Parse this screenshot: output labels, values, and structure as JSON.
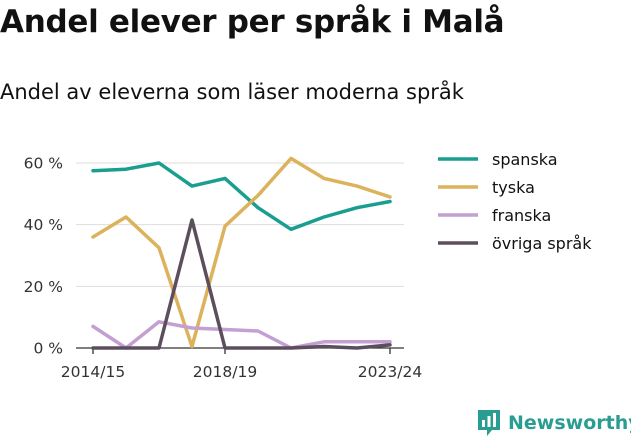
{
  "title": "Andel elever per språk i Malå",
  "subtitle": "Andel av eleverna som läser moderna språk",
  "brand": {
    "name": "Newsworthy",
    "logo_icon": "bar-chart-badge-icon",
    "color": "#2a9d92"
  },
  "chart_data": {
    "type": "line",
    "x": [
      "2014/15",
      "2015/16",
      "2016/17",
      "2017/18",
      "2018/19",
      "2019/20",
      "2020/21",
      "2021/22",
      "2022/23",
      "2023/24"
    ],
    "x_tick_labels": [
      "2014/15",
      "2018/19",
      "2023/24"
    ],
    "y_tick_labels": [
      "0 %",
      "20 %",
      "40 %",
      "60 %"
    ],
    "y_ticks": [
      0,
      20,
      40,
      60
    ],
    "ylim": [
      0,
      65
    ],
    "grid": true,
    "legend_position": "right",
    "series": [
      {
        "name": "spanska",
        "color": "#1a9e8f",
        "values": [
          57.5,
          58,
          60,
          52.5,
          55,
          45.5,
          38.5,
          42.5,
          45.5,
          47.5
        ]
      },
      {
        "name": "tyska",
        "color": "#dcb25a",
        "values": [
          36,
          42.5,
          32.5,
          0.5,
          39.5,
          49.5,
          61.5,
          55,
          52.5,
          49
        ]
      },
      {
        "name": "franska",
        "color": "#c49fd1",
        "values": [
          7,
          0,
          8.5,
          6.5,
          6,
          5.5,
          0,
          2,
          2,
          2
        ]
      },
      {
        "name": "övriga språk",
        "color": "#5d4e5d",
        "values": [
          0,
          0,
          0,
          41.5,
          0,
          0,
          0,
          0.5,
          0,
          1
        ]
      }
    ]
  }
}
